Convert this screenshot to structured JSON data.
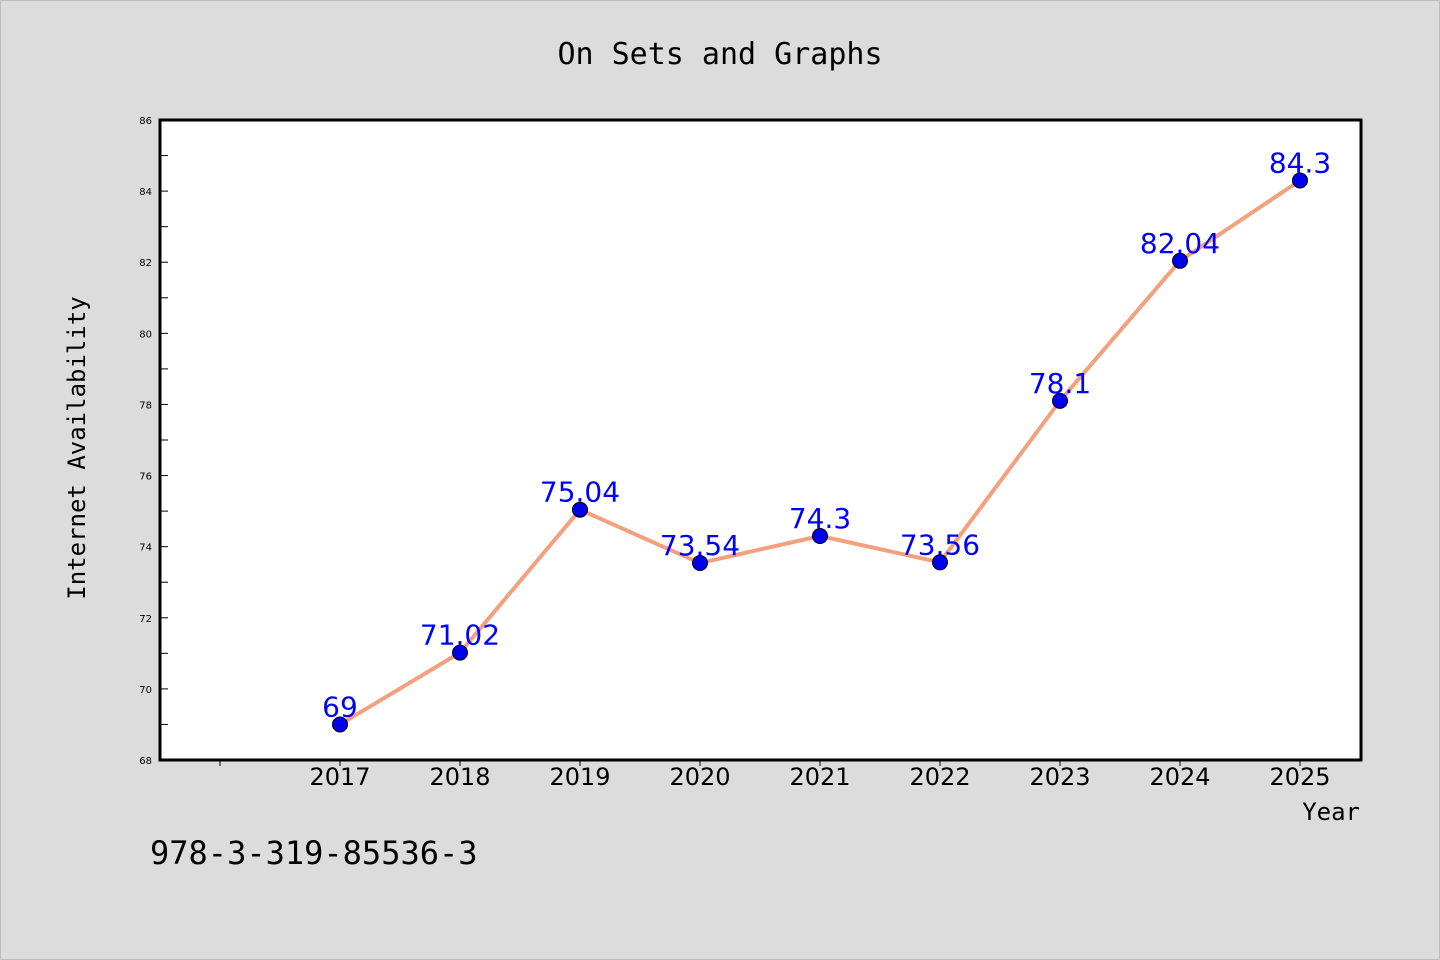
{
  "chart_data": {
    "type": "line",
    "title": "On Sets and Graphs",
    "xlabel": "Year",
    "ylabel": "Internet Availability",
    "categories": [
      "2017",
      "2018",
      "2019",
      "2020",
      "2021",
      "2022",
      "2023",
      "2024",
      "2025"
    ],
    "series": [
      {
        "values": [
          69,
          71.02,
          75.04,
          73.54,
          74.3,
          73.56,
          78.1,
          82.04,
          84.3
        ],
        "labels": [
          "69",
          "71.02",
          "75.04",
          "73.54",
          "74.3",
          "73.56",
          "78.1",
          "82.04",
          "84.3"
        ],
        "line_color": "#f4a07f",
        "marker_color": "#0000ee"
      }
    ],
    "ylim": [
      68,
      86
    ],
    "yticks": [
      "68",
      "70",
      "72",
      "74",
      "76",
      "78",
      "80",
      "82",
      "84",
      "86"
    ],
    "grid": false,
    "legend": "none",
    "data_label_color": "#0000ff"
  },
  "footer": {
    "isbn": "978-3-319-85536-3"
  },
  "colors": {
    "background": "#dcdcdc",
    "plot_background": "#ffffff",
    "axis": "#000000"
  }
}
